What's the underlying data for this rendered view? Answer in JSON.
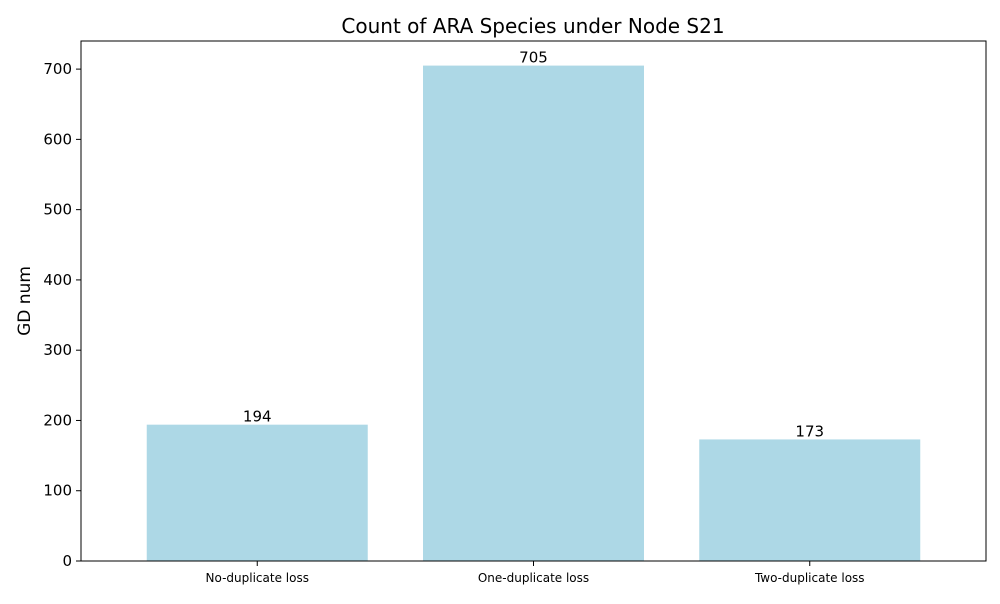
{
  "chart_data": {
    "type": "bar",
    "title": "Count of ARA Species under Node S21",
    "xlabel": "",
    "ylabel": "GD num",
    "categories": [
      "No-duplicate loss",
      "One-duplicate loss",
      "Two-duplicate loss"
    ],
    "values": [
      194,
      705,
      173
    ],
    "data_labels": [
      "194",
      "705",
      "173"
    ],
    "ylim": [
      0,
      740
    ],
    "yticks": [
      0,
      100,
      200,
      300,
      400,
      500,
      600,
      700
    ],
    "ytick_labels": [
      "0",
      "100",
      "200",
      "300",
      "400",
      "500",
      "600",
      "700"
    ],
    "bar_color": "#add8e6",
    "grid": false,
    "legend": "none"
  }
}
